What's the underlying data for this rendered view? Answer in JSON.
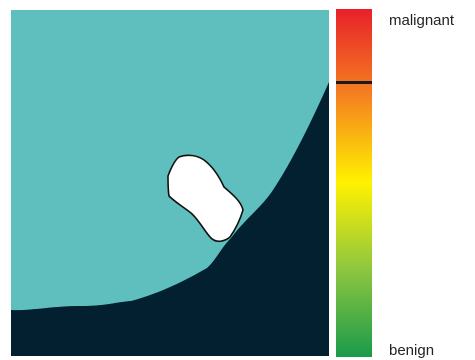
{
  "scale": {
    "top_label": "malignant",
    "bottom_label": "benign",
    "marker_level": 0.79,
    "gradient": [
      {
        "stop": 0.0,
        "color": "#e8202a"
      },
      {
        "stop": 0.25,
        "color": "#f58220"
      },
      {
        "stop": 0.5,
        "color": "#fff200"
      },
      {
        "stop": 0.75,
        "color": "#8dc63f"
      },
      {
        "stop": 1.0,
        "color": "#1a9a4a"
      }
    ]
  },
  "colors": {
    "background_region": "#5fbfbe",
    "dark_region": "#02202f",
    "lesion": "#ffffff",
    "lesion_outline": "#111111",
    "marker": "#1a1a1a"
  }
}
